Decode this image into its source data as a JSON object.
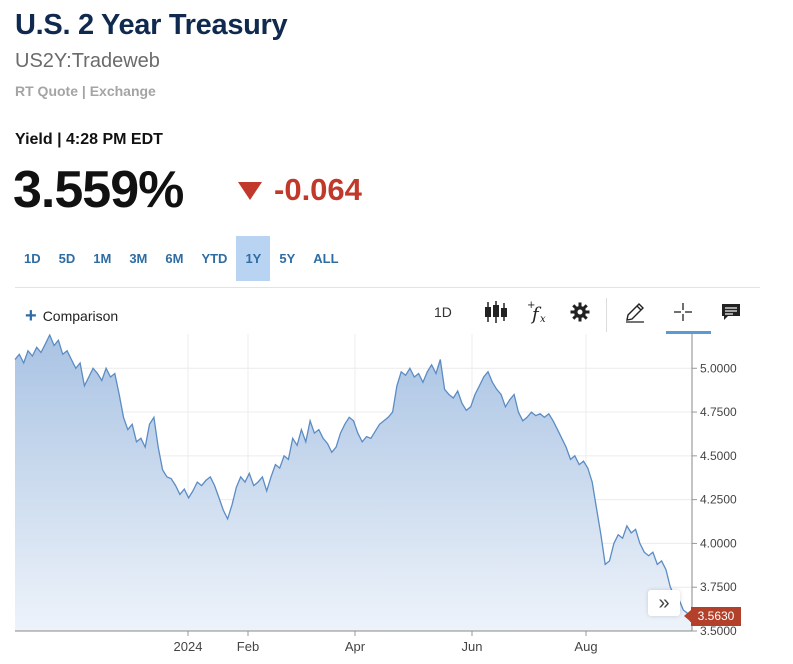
{
  "header": {
    "title": "U.S. 2 Year Treasury",
    "symbol": "US2Y:Tradeweb",
    "quote_source": "RT Quote | Exchange",
    "yield_line": "Yield | 4:28 PM EDT",
    "price": "3.559%",
    "change": "-0.064",
    "change_direction": "down",
    "change_color": "#c0392b"
  },
  "ranges": {
    "items": [
      "1D",
      "5D",
      "1M",
      "3M",
      "6M",
      "YTD",
      "1Y",
      "5Y",
      "ALL"
    ],
    "active": "1Y",
    "accent": "#b9d4f2"
  },
  "toolbar": {
    "comparison_label": "Comparison",
    "interval_label": "1D",
    "tools": [
      "candlestick-icon",
      "function-icon",
      "gear-icon",
      "pencil-icon",
      "crosshair-icon",
      "comment-icon"
    ]
  },
  "chart_data": {
    "type": "area",
    "x_tick_labels": [
      "2024",
      "Feb",
      "Apr",
      "Jun",
      "Aug"
    ],
    "y_tick_labels": [
      "3.5000",
      "3.7500",
      "4.0000",
      "4.2500",
      "4.5000",
      "4.7500",
      "5.0000"
    ],
    "ylim": [
      3.5,
      5.15
    ],
    "y_ticks": [
      3.5,
      3.75,
      4.0,
      4.25,
      4.5,
      4.75,
      5.0
    ],
    "grid": true,
    "line_color": "#5b8cc4",
    "last_value": 3.563,
    "last_value_label": "3.5630",
    "values": [
      5.05,
      5.08,
      5.03,
      5.1,
      5.07,
      5.12,
      5.09,
      5.14,
      5.19,
      5.13,
      5.16,
      5.08,
      5.1,
      5.05,
      5.0,
      5.03,
      4.9,
      4.95,
      5.0,
      4.97,
      4.93,
      5.0,
      4.95,
      4.97,
      4.85,
      4.72,
      4.65,
      4.68,
      4.58,
      4.6,
      4.55,
      4.68,
      4.72,
      4.55,
      4.42,
      4.38,
      4.37,
      4.33,
      4.28,
      4.31,
      4.26,
      4.3,
      4.35,
      4.33,
      4.36,
      4.38,
      4.33,
      4.26,
      4.19,
      4.14,
      4.22,
      4.32,
      4.38,
      4.35,
      4.4,
      4.33,
      4.35,
      4.38,
      4.3,
      4.38,
      4.45,
      4.43,
      4.5,
      4.48,
      4.6,
      4.56,
      4.65,
      4.58,
      4.7,
      4.63,
      4.65,
      4.6,
      4.57,
      4.52,
      4.55,
      4.63,
      4.68,
      4.72,
      4.7,
      4.63,
      4.58,
      4.61,
      4.6,
      4.64,
      4.68,
      4.7,
      4.72,
      4.75,
      4.9,
      4.98,
      4.96,
      5.0,
      4.95,
      4.97,
      4.92,
      4.98,
      5.02,
      4.97,
      5.05,
      4.88,
      4.85,
      4.83,
      4.87,
      4.8,
      4.76,
      4.78,
      4.85,
      4.9,
      4.95,
      4.98,
      4.92,
      4.88,
      4.85,
      4.78,
      4.82,
      4.85,
      4.75,
      4.7,
      4.72,
      4.75,
      4.73,
      4.74,
      4.72,
      4.74,
      4.7,
      4.65,
      4.6,
      4.55,
      4.48,
      4.5,
      4.45,
      4.47,
      4.43,
      4.35,
      4.2,
      4.05,
      3.88,
      3.9,
      4.0,
      4.05,
      4.03,
      4.1,
      4.06,
      4.08,
      4.0,
      3.95,
      3.93,
      3.95,
      3.88,
      3.9,
      3.85,
      3.75,
      3.7,
      3.68,
      3.62,
      3.6,
      3.563
    ]
  }
}
